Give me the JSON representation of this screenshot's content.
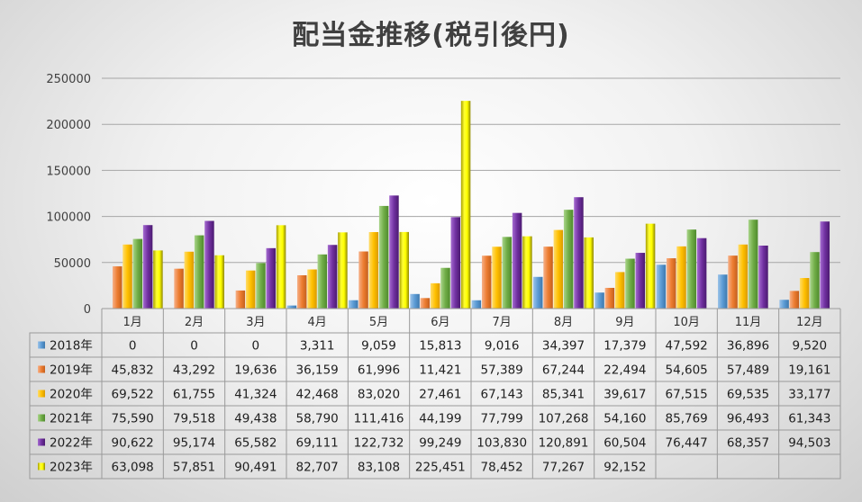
{
  "chart_data": {
    "type": "bar",
    "title": "配当金推移(税引後円)",
    "categories": [
      "1月",
      "2月",
      "3月",
      "4月",
      "5月",
      "6月",
      "7月",
      "8月",
      "9月",
      "10月",
      "11月",
      "12月"
    ],
    "ylim": [
      0,
      250000
    ],
    "yticks": [
      "0",
      "50000",
      "100000",
      "150000",
      "200000",
      "250000"
    ],
    "grid": true,
    "legend": "table-below",
    "series": [
      {
        "name": "2018年",
        "color": "#5b9bd5",
        "values": [
          0,
          0,
          0,
          3311,
          9059,
          15813,
          9016,
          34397,
          17379,
          47592,
          36896,
          9520
        ],
        "labels": [
          "0",
          "0",
          "0",
          "3,311",
          "9,059",
          "15,813",
          "9,016",
          "34,397",
          "17,379",
          "47,592",
          "36,896",
          "9,520"
        ]
      },
      {
        "name": "2019年",
        "color": "#ed7d31",
        "values": [
          45832,
          43292,
          19636,
          36159,
          61996,
          11421,
          57389,
          67244,
          22494,
          54605,
          57489,
          19161
        ],
        "labels": [
          "45,832",
          "43,292",
          "19,636",
          "36,159",
          "61,996",
          "11,421",
          "57,389",
          "67,244",
          "22,494",
          "54,605",
          "57,489",
          "19,161"
        ]
      },
      {
        "name": "2020年",
        "color": "#ffc000",
        "values": [
          69522,
          61755,
          41324,
          42468,
          83020,
          27461,
          67143,
          85341,
          39617,
          67515,
          69535,
          33177
        ],
        "labels": [
          "69,522",
          "61,755",
          "41,324",
          "42,468",
          "83,020",
          "27,461",
          "67,143",
          "85,341",
          "39,617",
          "67,515",
          "69,535",
          "33,177"
        ]
      },
      {
        "name": "2021年",
        "color": "#70ad47",
        "values": [
          75590,
          79518,
          49438,
          58790,
          111416,
          44199,
          77799,
          107268,
          54160,
          85769,
          96493,
          61343
        ],
        "labels": [
          "75,590",
          "79,518",
          "49,438",
          "58,790",
          "111,416",
          "44,199",
          "77,799",
          "107,268",
          "54,160",
          "85,769",
          "96,493",
          "61,343"
        ]
      },
      {
        "name": "2022年",
        "color": "#7030a0",
        "values": [
          90622,
          95174,
          65582,
          69111,
          122732,
          99249,
          103830,
          120891,
          60504,
          76447,
          68357,
          94503
        ],
        "labels": [
          "90,622",
          "95,174",
          "65,582",
          "69,111",
          "122,732",
          "99,249",
          "103,830",
          "120,891",
          "60,504",
          "76,447",
          "68,357",
          "94,503"
        ]
      },
      {
        "name": "2023年",
        "color": "#ffff00",
        "values": [
          63098,
          57851,
          90491,
          82707,
          83108,
          225451,
          78452,
          77267,
          92152,
          null,
          null,
          null
        ],
        "labels": [
          "63,098",
          "57,851",
          "90,491",
          "82,707",
          "83,108",
          "225,451",
          "78,452",
          "77,267",
          "92,152",
          "",
          "",
          ""
        ]
      }
    ]
  }
}
